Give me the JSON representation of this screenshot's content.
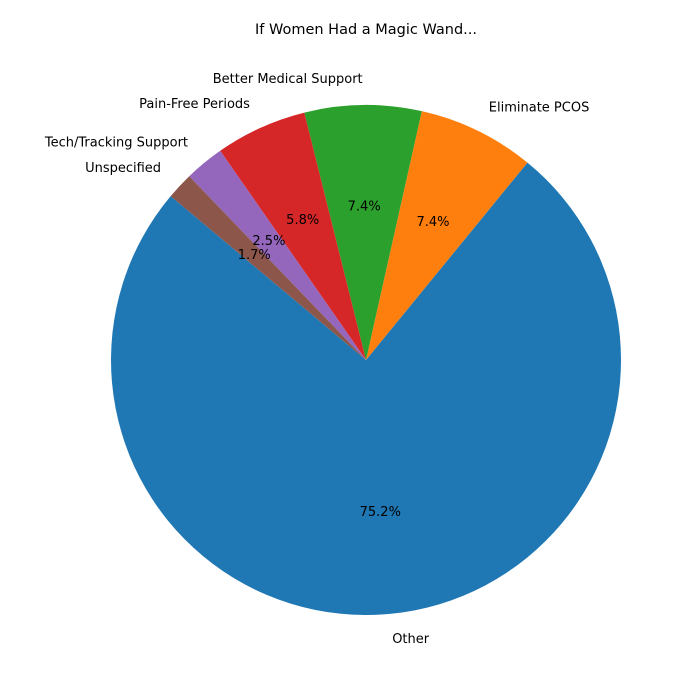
{
  "chart_data": {
    "type": "pie",
    "title": "If Women Had a Magic Wand...",
    "start_angle_deg": 140,
    "direction": "counterclockwise",
    "slices": [
      {
        "label": "Other",
        "value": 75.2,
        "pct_label": "75.2%",
        "color": "#1f77b4"
      },
      {
        "label": "Eliminate PCOS",
        "value": 7.4,
        "pct_label": "7.4%",
        "color": "#ff7f0e"
      },
      {
        "label": "Better Medical Support",
        "value": 7.4,
        "pct_label": "7.4%",
        "color": "#2ca02c"
      },
      {
        "label": "Pain-Free Periods",
        "value": 5.8,
        "pct_label": "5.8%",
        "color": "#d62728"
      },
      {
        "label": "Tech/Tracking Support",
        "value": 2.5,
        "pct_label": "2.5%",
        "color": "#9467bd"
      },
      {
        "label": "Unspecified",
        "value": 1.7,
        "pct_label": "1.7%",
        "color": "#8c564b"
      }
    ]
  }
}
